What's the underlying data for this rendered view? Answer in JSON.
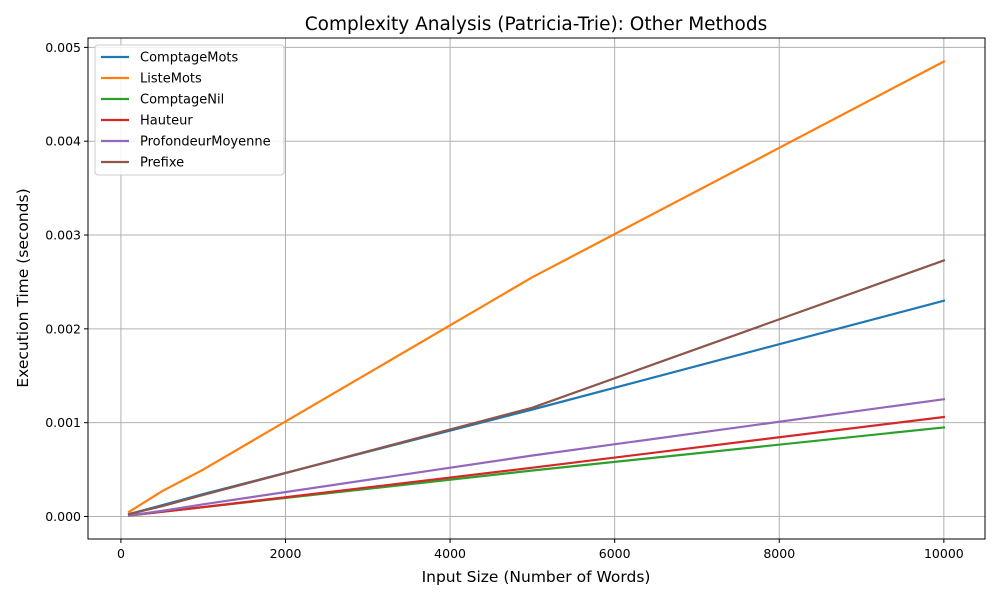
{
  "chart_data": {
    "type": "line",
    "title": "Complexity Analysis (Patricia-Trie): Other Methods",
    "xlabel": "Input Size (Number of Words)",
    "ylabel": "Execution Time (seconds)",
    "xlim": [
      -400,
      10500
    ],
    "ylim": [
      -0.00024,
      0.0051
    ],
    "x_ticks": [
      0,
      2000,
      4000,
      6000,
      8000,
      10000
    ],
    "y_ticks": [
      0.0,
      0.001,
      0.002,
      0.003,
      0.004,
      0.005
    ],
    "y_tick_labels": [
      "0.000",
      "0.001",
      "0.002",
      "0.003",
      "0.004",
      "0.005"
    ],
    "grid": true,
    "legend_position": "top-left",
    "x": [
      100,
      500,
      1000,
      5000,
      10000
    ],
    "series": [
      {
        "name": "ComptageMots",
        "color": "#1f77b4",
        "values": [
          2.5e-05,
          0.00012,
          0.00024,
          0.00114,
          0.0023
        ]
      },
      {
        "name": "ListeMots",
        "color": "#ff7f0e",
        "values": [
          5e-05,
          0.00027,
          0.0005,
          0.00255,
          0.00485
        ]
      },
      {
        "name": "ComptageNil",
        "color": "#2ca02c",
        "values": [
          1e-05,
          5e-05,
          0.0001,
          0.00049,
          0.00095
        ]
      },
      {
        "name": "Hauteur",
        "color": "#d62728",
        "values": [
          1e-05,
          5e-05,
          0.0001,
          0.00052,
          0.00106
        ]
      },
      {
        "name": "ProfondeurMoyenne",
        "color": "#9467bd",
        "values": [
          1e-05,
          6e-05,
          0.00013,
          0.00065,
          0.00125
        ]
      },
      {
        "name": "Prefixe",
        "color": "#8c564b",
        "values": [
          2.5e-05,
          0.00011,
          0.00023,
          0.00116,
          0.00273
        ]
      }
    ]
  }
}
